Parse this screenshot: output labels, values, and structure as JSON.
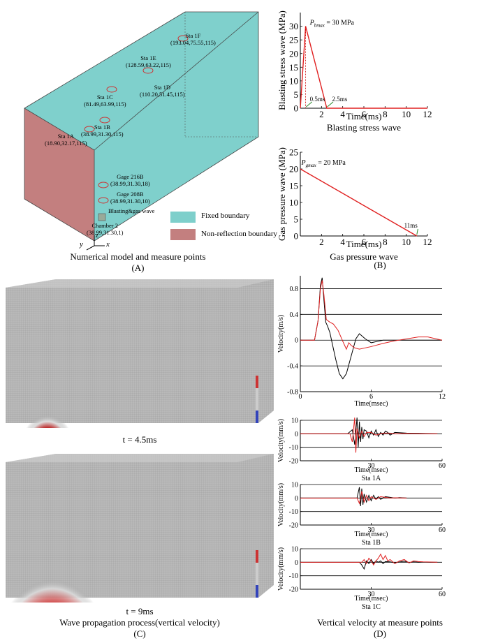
{
  "panel_a": {
    "stations": [
      {
        "label": "Sta 1F",
        "coords": "(193.04,75.55,115)"
      },
      {
        "label": "Sta 1E",
        "coords": "(128.59,63.22,115)"
      },
      {
        "label": "Sta 1D",
        "coords": "(110.20,51.45,115)"
      },
      {
        "label": "Sta 1C",
        "coords": "(81.49,63.99,115)"
      },
      {
        "label": "Sta 1B",
        "coords": "(38.99,31.30,115)"
      },
      {
        "label": "Sta 1A",
        "coords": "(18.90,32.17,115)"
      },
      {
        "label": "Gage 216B",
        "coords": "(38.99,31.30,18)"
      },
      {
        "label": "Gage 208B",
        "coords": "(38.99,31.30,10)"
      },
      {
        "label": "Chamber 2",
        "coords": "(38.99,31.30,1)"
      }
    ],
    "source_label": "Blasting&gas wave",
    "legend": [
      {
        "label": "Fixed boundary",
        "color": "#7ecfcb"
      },
      {
        "label": "Non-reflection boundary",
        "color": "#c37f7f"
      }
    ],
    "axes": {
      "x": "x",
      "y": "y",
      "z": "z"
    },
    "caption": "Numerical model and measure points",
    "letter": "(A)"
  },
  "panel_b": {
    "caption": "Gas pressure wave",
    "letter": "(B)"
  },
  "panel_c": {
    "time1": "t = 4.5ms",
    "time2": "t = 9ms",
    "caption": "Wave propagation process(vertical velocity)",
    "letter": "(C)"
  },
  "panel_d": {
    "caption": "Vertical velocity at measure points",
    "letter": "(D)"
  },
  "chart_data": [
    {
      "id": "blast",
      "type": "line",
      "title": "Blasting stress wave",
      "xlabel": "Time(ms)",
      "ylabel": "Blasting stress wave (MPa)",
      "xlim": [
        0,
        12
      ],
      "ylim": [
        0,
        35
      ],
      "xticks": [
        2,
        4,
        6,
        8,
        10,
        12
      ],
      "yticks": [
        0,
        5,
        10,
        15,
        20,
        25,
        30
      ],
      "series": [
        {
          "color": "#e02020",
          "x": [
            0,
            0.5,
            2.5,
            12
          ],
          "y": [
            0,
            30,
            0,
            0
          ]
        }
      ],
      "annotations": {
        "peak_sym": "P",
        "peak_sub": "bmax",
        "peak_text": " = 30 MPa",
        "t1": "0.5ms",
        "t2": "2.5ms"
      }
    },
    {
      "id": "gas",
      "type": "line",
      "title": "Gas pressure wave",
      "xlabel": "Time(ms)",
      "ylabel": "Gas pressure wave (MPa)",
      "xlim": [
        0,
        12
      ],
      "ylim": [
        0,
        25
      ],
      "xticks": [
        2,
        4,
        6,
        8,
        10,
        12
      ],
      "yticks": [
        0,
        5,
        10,
        15,
        20,
        25
      ],
      "series": [
        {
          "color": "#e02020",
          "x": [
            0,
            11
          ],
          "y": [
            20,
            0
          ]
        }
      ],
      "annotations": {
        "peak_sym": "P",
        "peak_sub": "gmax",
        "peak_text": " = 20 MPa",
        "t_end": "11ms"
      }
    },
    {
      "id": "vel",
      "type": "line",
      "xlabel": "Time(msec)",
      "ylabel": "Velocity(m/s)",
      "xlim": [
        0,
        12
      ],
      "ylim": [
        -0.8,
        1.0
      ],
      "xticks": [
        0,
        6,
        12
      ],
      "yticks": [
        -0.8,
        -0.4,
        0,
        0.4,
        0.8
      ],
      "grid": true,
      "series": [
        {
          "color": "#000000",
          "x": [
            0,
            1.2,
            1.5,
            1.7,
            1.85,
            2.0,
            2.15,
            2.3,
            2.5,
            2.7,
            3.0,
            3.3,
            3.6,
            3.9,
            4.3,
            4.7,
            5.0,
            5.5,
            6.0,
            6.5,
            7.0,
            8.0,
            9.0,
            10.0,
            11.0,
            12.0
          ],
          "y": [
            0,
            0,
            0.3,
            0.85,
            0.97,
            0.62,
            0.28,
            0.22,
            0.12,
            -0.05,
            -0.3,
            -0.52,
            -0.6,
            -0.52,
            -0.25,
            0.02,
            0.1,
            0.02,
            -0.04,
            -0.02,
            0,
            0,
            0,
            0,
            0,
            0
          ]
        },
        {
          "color": "#e02020",
          "x": [
            0,
            1.2,
            1.5,
            1.7,
            1.85,
            2.0,
            2.2,
            2.5,
            2.8,
            3.2,
            3.6,
            3.9,
            4.1,
            4.3,
            4.6,
            5.0,
            6.0,
            7.0,
            8.0,
            9.0,
            10.0,
            10.8,
            11.5,
            12.0
          ],
          "y": [
            0,
            0,
            0.3,
            0.8,
            0.93,
            0.7,
            0.32,
            0.28,
            0.25,
            0.15,
            -0.02,
            -0.14,
            -0.04,
            -0.08,
            -0.12,
            -0.14,
            -0.1,
            -0.05,
            -0.01,
            0.02,
            0.05,
            0.05,
            0.02,
            0
          ]
        }
      ]
    },
    {
      "id": "sta1a",
      "type": "line",
      "title": "Sta 1A",
      "xlabel": "Time(msec)",
      "ylabel": "Velocity(mm/s)",
      "xlim": [
        0,
        60
      ],
      "ylim": [
        -20,
        10
      ],
      "xticks": [
        30,
        60
      ],
      "yticks": [
        -20,
        -10,
        0,
        10
      ],
      "grid": true,
      "series": [
        {
          "color": "#000000",
          "x": [
            0,
            20,
            22,
            23,
            24,
            24.5,
            25,
            25.5,
            26,
            26.5,
            27,
            28,
            29,
            30,
            31,
            32,
            33,
            34,
            35,
            36,
            37,
            38,
            40,
            45,
            50,
            58
          ],
          "y": [
            0,
            0,
            3,
            -8,
            12,
            -10,
            9,
            -6,
            5,
            -4,
            3,
            2,
            -3,
            2,
            -1,
            3,
            -2,
            1,
            -1,
            2,
            1,
            -1,
            1,
            0.5,
            0.3,
            0
          ]
        },
        {
          "color": "#e02020",
          "x": [
            0,
            21,
            22,
            23,
            23.5,
            24,
            25,
            26,
            27,
            28,
            30,
            32,
            35,
            38,
            40,
            45,
            50,
            58
          ],
          "y": [
            0,
            0,
            -6,
            12,
            -14,
            4,
            -3,
            2,
            -2,
            1,
            1,
            -1,
            0.5,
            0.5,
            0,
            0.3,
            0,
            0
          ]
        }
      ]
    },
    {
      "id": "sta1b",
      "type": "line",
      "title": "Sta 1B",
      "xlabel": "Time(msec)",
      "ylabel": "Velocity(mm/s)",
      "xlim": [
        0,
        60
      ],
      "ylim": [
        -20,
        10
      ],
      "xticks": [
        30,
        60
      ],
      "yticks": [
        -20,
        -10,
        0,
        10
      ],
      "grid": true,
      "series": [
        {
          "color": "#000000",
          "x": [
            0,
            24,
            25,
            25.5,
            26,
            26.5,
            27,
            28,
            29,
            30,
            31,
            32,
            33,
            34,
            36,
            38,
            40,
            42,
            45
          ],
          "y": [
            0,
            0,
            8,
            -6,
            7,
            -5,
            3,
            -3,
            2,
            -2,
            2,
            -1,
            1,
            -1,
            1,
            0.5,
            0,
            0.3,
            0
          ]
        },
        {
          "color": "#e02020",
          "x": [
            0,
            24,
            25,
            26,
            27,
            28,
            29,
            30,
            32,
            34,
            36,
            38,
            40,
            45
          ],
          "y": [
            0,
            0,
            -4,
            5,
            -3,
            2,
            -2,
            1,
            -1,
            1,
            0.5,
            0,
            0.2,
            0
          ]
        }
      ]
    },
    {
      "id": "sta1c",
      "type": "line",
      "title": "Sta 1C",
      "xlabel": "Time(msec)",
      "ylabel": "Velocity(mm/s)",
      "xlim": [
        0,
        60
      ],
      "ylim": [
        -20,
        10
      ],
      "xticks": [
        30,
        60
      ],
      "yticks": [
        -20,
        -10,
        0,
        10
      ],
      "grid": true,
      "series": [
        {
          "color": "#000000",
          "x": [
            0,
            25,
            26,
            27,
            28,
            29,
            30,
            31,
            32,
            33,
            34,
            35,
            36,
            38,
            40,
            42,
            44,
            46,
            48,
            50,
            52,
            55,
            58
          ],
          "y": [
            0,
            0,
            -2,
            -5,
            1,
            -1,
            2,
            -1,
            1,
            0,
            1,
            -1,
            0.5,
            0.3,
            -0.5,
            0.2,
            0.8,
            -0.3,
            0.3,
            0,
            0.2,
            0,
            0
          ]
        },
        {
          "color": "#e02020",
          "x": [
            0,
            26,
            27,
            28,
            29,
            30,
            31,
            32,
            33,
            34,
            35,
            36,
            37,
            38,
            40,
            42,
            44,
            46,
            48,
            50,
            52,
            55,
            58
          ],
          "y": [
            0,
            0,
            2,
            -1,
            3,
            1,
            -2,
            1,
            3,
            6,
            2,
            5,
            1,
            2,
            -1,
            1,
            2,
            -0.5,
            1,
            0.5,
            0.3,
            0.2,
            0
          ]
        }
      ]
    }
  ]
}
